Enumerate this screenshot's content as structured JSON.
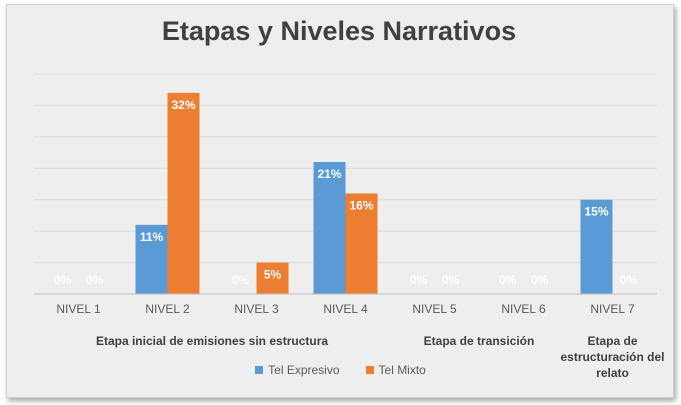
{
  "chart_data": {
    "type": "bar",
    "title": "Etapas y Niveles Narrativos",
    "categories": [
      "NIVEL 1",
      "NIVEL 2",
      "NIVEL 3",
      "NIVEL 4",
      "NIVEL 5",
      "NIVEL 6",
      "NIVEL 7"
    ],
    "series": [
      {
        "name": "Tel Expresivo",
        "color": "#5b9bd5",
        "values": [
          0,
          11,
          0,
          21,
          0,
          0,
          15
        ],
        "labels": [
          "0%",
          "11%",
          "0%",
          "21%",
          "0%",
          "0%",
          "15%"
        ]
      },
      {
        "name": "Tel Mixto",
        "color": "#ed7d31",
        "values": [
          0,
          32,
          5,
          16,
          0,
          0,
          0
        ],
        "labels": [
          "0%",
          "32%",
          "5%",
          "16%",
          "0%",
          "0%",
          "0%"
        ]
      }
    ],
    "ylim": [
      0,
      35
    ],
    "grid": true,
    "legend_position": "bottom",
    "groups": [
      {
        "label_lines": [
          "Etapa inicial de emisiones sin estructura"
        ],
        "span": [
          0,
          3
        ]
      },
      {
        "label_lines": [
          "Etapa de transición"
        ],
        "span": [
          4,
          5
        ]
      },
      {
        "label_lines": [
          "Etapa de",
          "estructuración del",
          "relato"
        ],
        "span": [
          6,
          6
        ]
      }
    ]
  }
}
